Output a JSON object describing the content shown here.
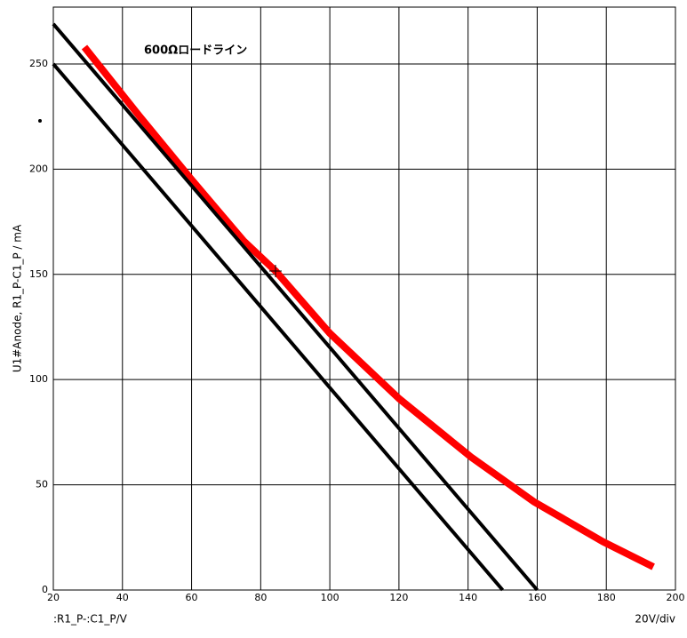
{
  "chart_data": {
    "type": "line",
    "annotation": "600Ωロードライン",
    "y_label": "U1#Anode, R1_P-C1_P / mA",
    "x_label": ":R1_P-:C1_P/V",
    "x_scale_label": "20V/div",
    "xlim": [
      20,
      200
    ],
    "ylim": [
      0,
      277
    ],
    "xticks": [
      20,
      40,
      60,
      80,
      100,
      120,
      140,
      160,
      180,
      200
    ],
    "yticks": [
      0,
      50,
      100,
      150,
      200,
      250
    ],
    "grid": true,
    "series": [
      {
        "color": "#ff0000",
        "x": [
          29,
          45,
          60,
          75,
          84.3,
          100,
          120,
          141,
          159,
          179,
          193.6
        ],
        "values": [
          258,
          225,
          195,
          166,
          151.6,
          122,
          91,
          63,
          42,
          23,
          11
        ]
      },
      {
        "color": "#000000",
        "x": [
          20,
          160
        ],
        "values": [
          269,
          0
        ]
      },
      {
        "color": "#000000",
        "x": [
          20,
          150
        ],
        "values": [
          250,
          0
        ]
      }
    ]
  }
}
